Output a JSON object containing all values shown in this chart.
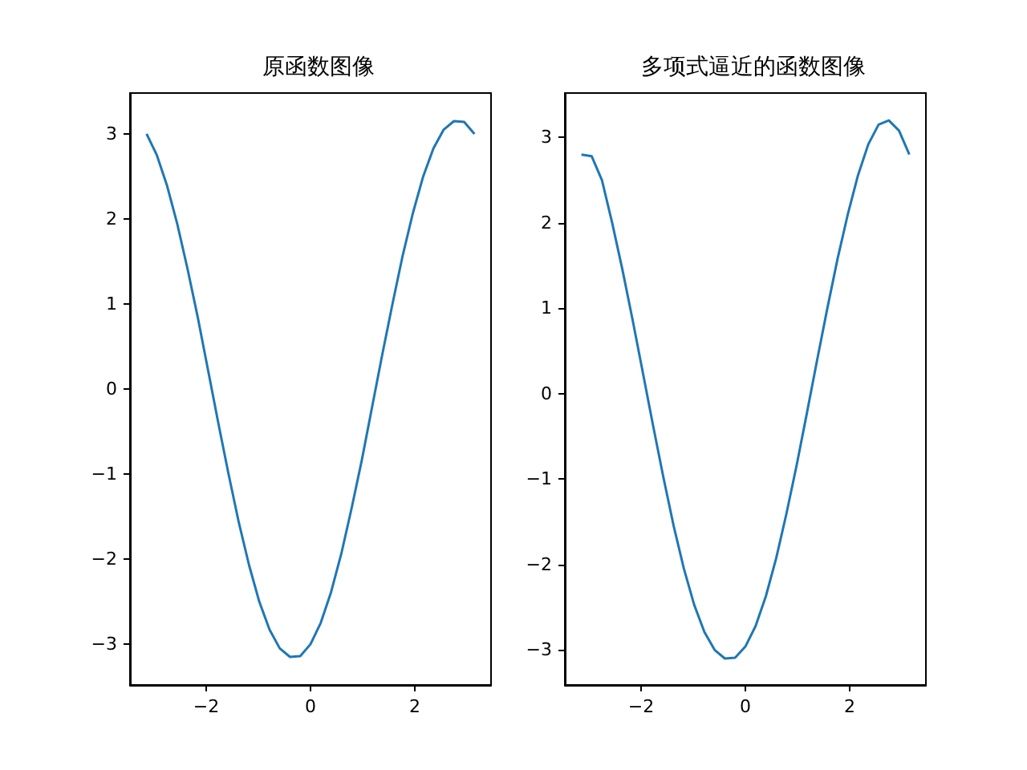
{
  "chart_data": [
    {
      "type": "line",
      "title": "原函数图像",
      "xlim": [
        -3.46,
        3.46
      ],
      "ylim": [
        -3.48,
        3.48
      ],
      "xticks": [
        -2,
        0,
        2
      ],
      "yticks": [
        -3,
        -2,
        -1,
        0,
        1,
        2,
        3
      ],
      "series": [
        {
          "color": "#1f77b4",
          "x": [
            -3.142,
            -2.945,
            -2.749,
            -2.553,
            -2.356,
            -2.16,
            -1.963,
            -1.767,
            -1.571,
            -1.374,
            -1.178,
            -0.982,
            -0.785,
            -0.589,
            -0.393,
            -0.196,
            0,
            0.196,
            0.393,
            0.589,
            0.785,
            0.982,
            1.178,
            1.374,
            1.571,
            1.767,
            1.963,
            2.16,
            2.356,
            2.553,
            2.749,
            2.945,
            3.142
          ],
          "values": [
            3.0,
            2.75,
            2.39,
            1.94,
            1.41,
            0.84,
            0.22,
            -0.4,
            -1.0,
            -1.57,
            -2.07,
            -2.5,
            -2.83,
            -3.05,
            -3.15,
            -3.14,
            -3.0,
            -2.75,
            -2.39,
            -1.94,
            -1.41,
            -0.84,
            -0.22,
            0.4,
            1.0,
            1.57,
            2.07,
            2.5,
            2.83,
            3.05,
            3.15,
            3.14,
            3.0
          ]
        }
      ]
    },
    {
      "type": "line",
      "title": "多项式逼近的函数图像",
      "xlim": [
        -3.46,
        3.46
      ],
      "ylim": [
        -3.41,
        3.52
      ],
      "xticks": [
        -2,
        0,
        2
      ],
      "yticks": [
        -3,
        -2,
        -1,
        0,
        1,
        2,
        3
      ],
      "series": [
        {
          "color": "#1f77b4",
          "x": [
            -3.142,
            -2.945,
            -2.749,
            -2.553,
            -2.356,
            -2.16,
            -1.963,
            -1.767,
            -1.571,
            -1.374,
            -1.178,
            -0.982,
            -0.785,
            -0.589,
            -0.393,
            -0.196,
            0,
            0.196,
            0.393,
            0.589,
            0.785,
            0.982,
            1.178,
            1.374,
            1.571,
            1.767,
            1.963,
            2.16,
            2.356,
            2.553,
            2.749,
            2.945,
            3.142
          ],
          "values": [
            2.8,
            2.78,
            2.5,
            2.0,
            1.45,
            0.86,
            0.24,
            -0.38,
            -0.98,
            -1.55,
            -2.05,
            -2.47,
            -2.79,
            -3.0,
            -3.1,
            -3.09,
            -2.96,
            -2.72,
            -2.37,
            -1.93,
            -1.41,
            -0.84,
            -0.23,
            0.39,
            1.0,
            1.58,
            2.1,
            2.56,
            2.92,
            3.15,
            3.2,
            3.08,
            2.8
          ]
        }
      ]
    }
  ]
}
